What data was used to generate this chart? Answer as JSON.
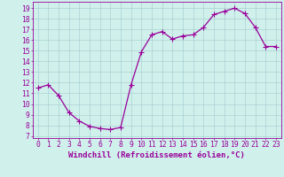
{
  "x": [
    0,
    1,
    2,
    3,
    4,
    5,
    6,
    7,
    8,
    9,
    10,
    11,
    12,
    13,
    14,
    15,
    16,
    17,
    18,
    19,
    20,
    21,
    22,
    23
  ],
  "y": [
    11.5,
    11.8,
    10.8,
    9.2,
    8.4,
    7.9,
    7.7,
    7.6,
    7.8,
    11.8,
    14.9,
    16.5,
    16.8,
    16.1,
    16.4,
    16.5,
    17.2,
    18.4,
    18.7,
    19.0,
    18.5,
    17.2,
    15.4,
    15.4
  ],
  "line_color": "#990099",
  "marker": "+",
  "markersize": 4,
  "linewidth": 0.9,
  "bg_color": "#d0f0ec",
  "grid_color": "#a0cccc",
  "ylabel_ticks": [
    7,
    8,
    9,
    10,
    11,
    12,
    13,
    14,
    15,
    16,
    17,
    18,
    19
  ],
  "ylim": [
    6.8,
    19.6
  ],
  "xlim": [
    -0.5,
    23.5
  ],
  "xlabel": "Windchill (Refroidissement éolien,°C)",
  "xlabel_fontsize": 6.5,
  "tick_fontsize": 5.8,
  "tick_color": "#990099",
  "spine_color": "#990099"
}
